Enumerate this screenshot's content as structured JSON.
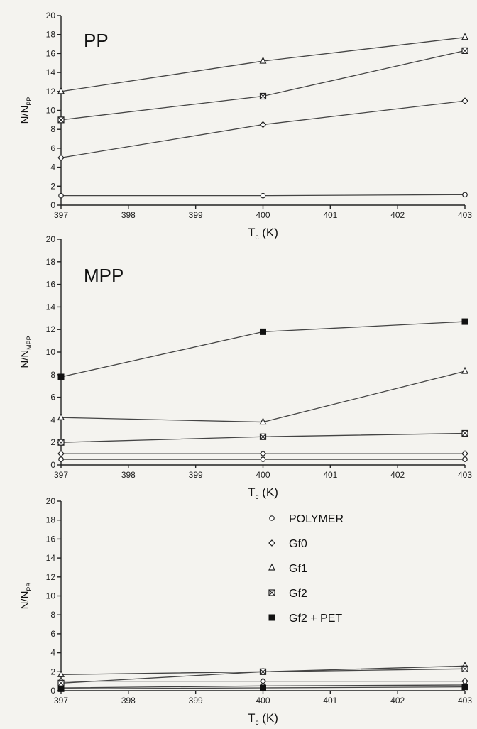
{
  "legend": [
    {
      "key": "polymer",
      "label": "POLYMER",
      "marker": "open-circle"
    },
    {
      "key": "gf0",
      "label": "Gf0",
      "marker": "open-diamond"
    },
    {
      "key": "gf1",
      "label": "Gf1",
      "marker": "open-triangle"
    },
    {
      "key": "gf2",
      "label": "Gf2",
      "marker": "crossed-square"
    },
    {
      "key": "gf2pet",
      "label": "Gf2 + PET",
      "marker": "filled-square"
    }
  ],
  "chart_data": [
    {
      "type": "line",
      "title": "PP",
      "xlabel": "T_c (K)",
      "ylabel": "N/N_PP",
      "ylim": [
        0,
        20
      ],
      "x_ticks": [
        397,
        398,
        399,
        400,
        401,
        402,
        403
      ],
      "y_ticks": [
        0,
        2,
        4,
        6,
        8,
        10,
        12,
        14,
        16,
        18,
        20
      ],
      "x": [
        397,
        400,
        403
      ],
      "series": [
        {
          "name": "POLYMER",
          "values": [
            1,
            1,
            1.1
          ]
        },
        {
          "name": "Gf0",
          "values": [
            5,
            8.5,
            11
          ]
        },
        {
          "name": "Gf1",
          "values": [
            12,
            15.2,
            17.7
          ]
        },
        {
          "name": "Gf2",
          "values": [
            9,
            11.5,
            16.3
          ]
        }
      ]
    },
    {
      "type": "line",
      "title": "MPP",
      "xlabel": "T_c (K)",
      "ylabel": "N/N_MPP",
      "ylim": [
        0,
        20
      ],
      "x_ticks": [
        397,
        398,
        399,
        400,
        401,
        402,
        403
      ],
      "y_ticks": [
        0,
        2,
        4,
        6,
        8,
        10,
        12,
        14,
        16,
        18,
        20
      ],
      "x": [
        397,
        400,
        403
      ],
      "series": [
        {
          "name": "POLYMER",
          "values": [
            0.5,
            0.5,
            0.5
          ]
        },
        {
          "name": "Gf0",
          "values": [
            1,
            1,
            1
          ]
        },
        {
          "name": "Gf1",
          "values": [
            4.2,
            3.8,
            8.3
          ]
        },
        {
          "name": "Gf2",
          "values": [
            2,
            2.5,
            2.8
          ]
        },
        {
          "name": "Gf2 + PET",
          "values": [
            7.8,
            11.8,
            12.7
          ]
        }
      ]
    },
    {
      "type": "line",
      "title": "",
      "xlabel": "T_c (K)",
      "ylabel": "N/N_PB",
      "ylim": [
        0,
        20
      ],
      "x_ticks": [
        397,
        398,
        399,
        400,
        401,
        402,
        403
      ],
      "y_ticks": [
        0,
        2,
        4,
        6,
        8,
        10,
        12,
        14,
        16,
        18,
        20
      ],
      "x": [
        397,
        400,
        403
      ],
      "series": [
        {
          "name": "POLYMER",
          "values": [
            0.3,
            0.5,
            0.6
          ]
        },
        {
          "name": "Gf0",
          "values": [
            1,
            1,
            1
          ]
        },
        {
          "name": "Gf1",
          "values": [
            1.7,
            2,
            2.6
          ]
        },
        {
          "name": "Gf2",
          "values": [
            0.8,
            2,
            2.3
          ]
        },
        {
          "name": "Gf2 + PET",
          "values": [
            0.2,
            0.3,
            0.4
          ]
        }
      ]
    }
  ]
}
